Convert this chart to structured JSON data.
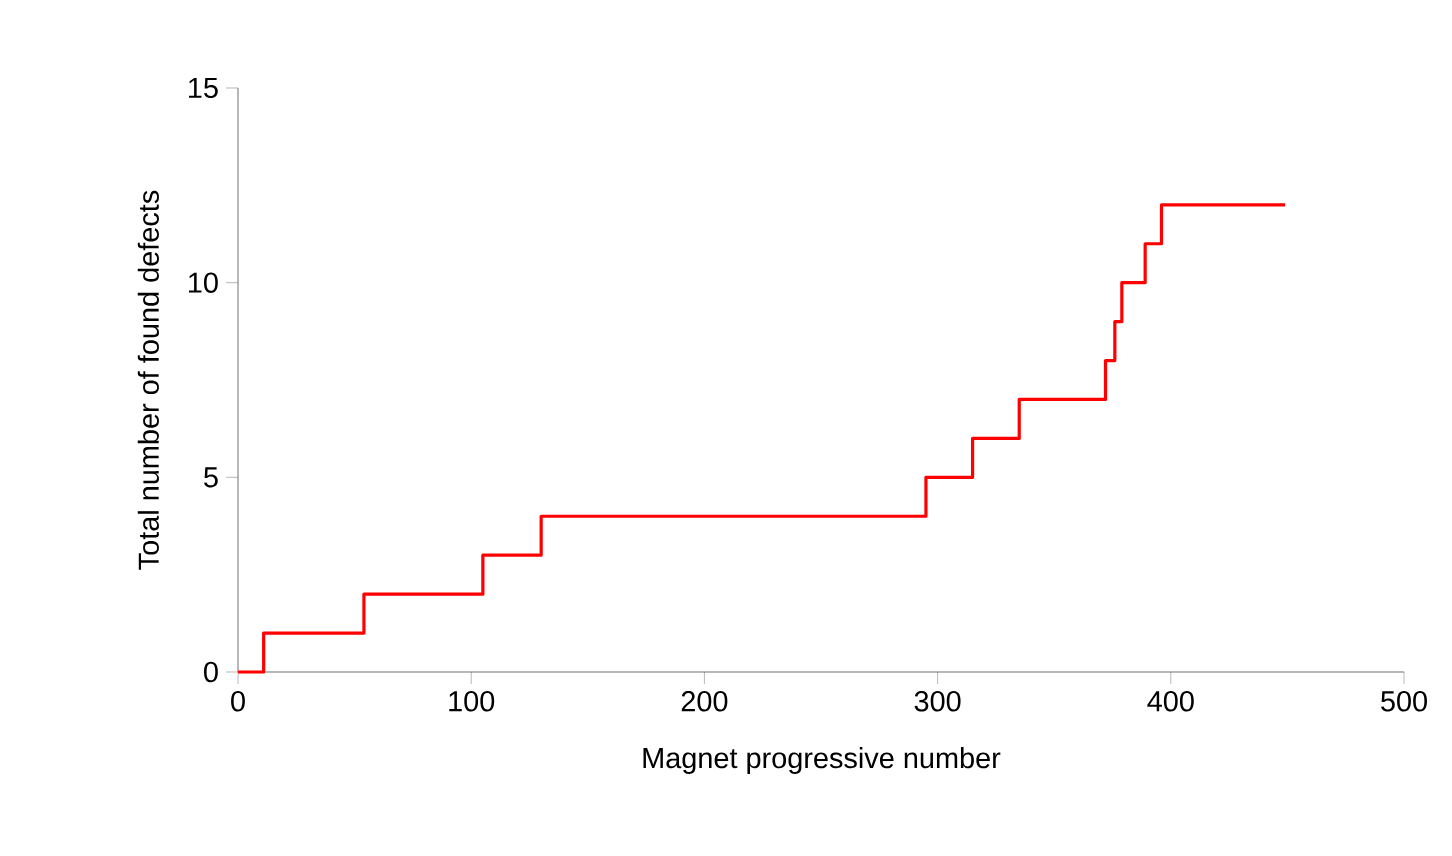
{
  "chart_data": {
    "type": "step",
    "xlabel": "Magnet progressive number",
    "ylabel": "Total number of found defects",
    "x": [
      0,
      11,
      54,
      105,
      130,
      295,
      315,
      335,
      372,
      376,
      379,
      389,
      396,
      449
    ],
    "series": [
      {
        "color": "#ff0000",
        "values": [
          0,
          1,
          2,
          3,
          4,
          5,
          6,
          7,
          8,
          9,
          10,
          11,
          12,
          12
        ]
      }
    ],
    "xlim": [
      0,
      500
    ],
    "xticks": [
      0,
      100,
      200,
      300,
      400,
      500
    ],
    "ylim": [
      0,
      15
    ],
    "yticks": [
      0,
      5,
      10,
      15
    ],
    "grid": false
  }
}
